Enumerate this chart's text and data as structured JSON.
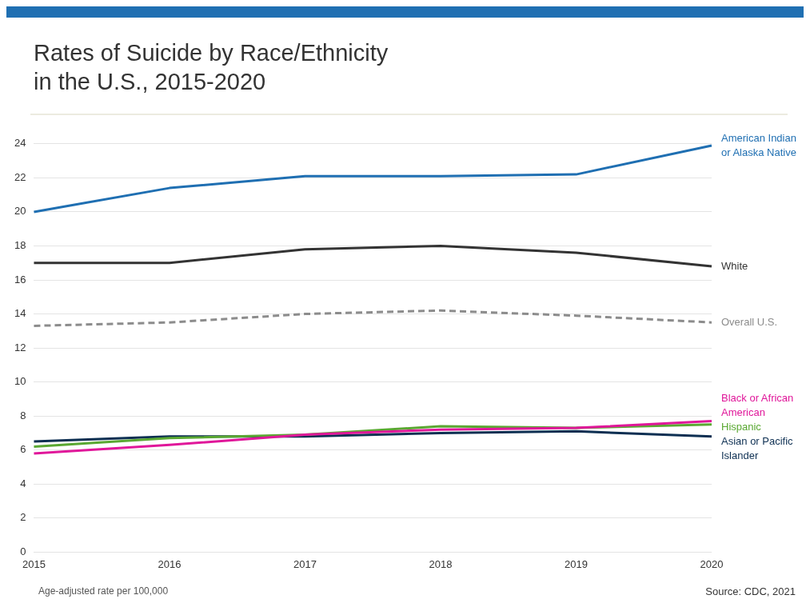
{
  "chart_data": {
    "type": "line",
    "title": "Rates of Suicide by Race/Ethnicity\nin the U.S., 2015-2020",
    "annotations": [
      "Age-adjusted rate per 100,000",
      "Source: CDC, 2021"
    ],
    "categories": [
      "2015",
      "2016",
      "2017",
      "2018",
      "2019",
      "2020"
    ],
    "series": [
      {
        "name": "American Indian or Alaska Native",
        "color": "#1f6fb2",
        "values": [
          20.0,
          21.4,
          22.1,
          22.1,
          22.2,
          23.9
        ]
      },
      {
        "name": "White",
        "color": "#333333",
        "values": [
          17.0,
          17.0,
          17.8,
          18.0,
          17.6,
          16.8
        ]
      },
      {
        "name": "Overall U.S.",
        "color": "#8c8c8c",
        "line_style": "dashed",
        "values": [
          13.3,
          13.5,
          14.0,
          14.2,
          13.9,
          13.5
        ]
      },
      {
        "name": "Black or African American",
        "color": "#e0179a",
        "values": [
          5.8,
          6.3,
          6.9,
          7.2,
          7.3,
          7.7
        ]
      },
      {
        "name": "Hispanic",
        "color": "#5aa832",
        "values": [
          6.2,
          6.7,
          6.9,
          7.4,
          7.3,
          7.5
        ]
      },
      {
        "name": "Asian or Pacific Islander",
        "color": "#0d2f52",
        "values": [
          6.5,
          6.8,
          6.8,
          7.0,
          7.1,
          6.8
        ]
      }
    ],
    "ylim": [
      0,
      24
    ],
    "yticks": [
      0,
      2,
      4,
      6,
      8,
      10,
      12,
      14,
      16,
      18,
      20,
      22,
      24
    ],
    "grid": "y",
    "legend": false,
    "marker": "none",
    "line_style": "solid"
  }
}
